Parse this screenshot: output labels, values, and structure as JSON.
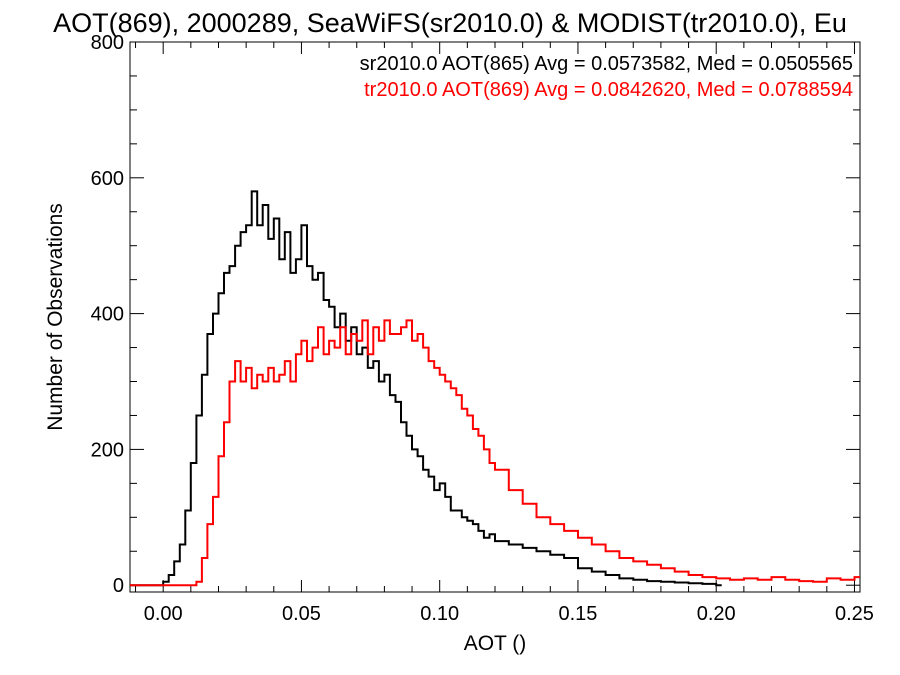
{
  "chart_data": {
    "type": "line",
    "title": "AOT(869), 2000289, SeaWiFS(sr2010.0) & MODIST(tr2010.0), Eu",
    "xlabel": "AOT ()",
    "ylabel": "Number of Observations",
    "xlim": [
      -0.012,
      0.252
    ],
    "ylim": [
      -10,
      800
    ],
    "xticks": [
      0.0,
      0.05,
      0.1,
      0.15,
      0.2,
      0.25
    ],
    "xtick_labels": [
      "0.00",
      "0.05",
      "0.10",
      "0.15",
      "0.20",
      "0.25"
    ],
    "yticks": [
      0,
      200,
      400,
      600,
      800
    ],
    "ytick_labels": [
      "0",
      "200",
      "400",
      "600",
      "800"
    ],
    "grid": false,
    "legend_position": "top-right",
    "series": [
      {
        "name": "sr2010.0 AOT(865) Avg = 0.0573582, Med = 0.0505565",
        "color": "#000000",
        "step": "hist",
        "x": [
          0.0,
          0.002,
          0.004,
          0.006,
          0.008,
          0.01,
          0.012,
          0.014,
          0.016,
          0.018,
          0.02,
          0.022,
          0.024,
          0.026,
          0.028,
          0.03,
          0.032,
          0.034,
          0.036,
          0.038,
          0.04,
          0.042,
          0.044,
          0.046,
          0.048,
          0.05,
          0.052,
          0.054,
          0.056,
          0.058,
          0.06,
          0.062,
          0.064,
          0.066,
          0.068,
          0.07,
          0.072,
          0.074,
          0.076,
          0.078,
          0.08,
          0.082,
          0.084,
          0.086,
          0.088,
          0.09,
          0.092,
          0.094,
          0.096,
          0.098,
          0.1,
          0.102,
          0.104,
          0.106,
          0.108,
          0.11,
          0.112,
          0.114,
          0.116,
          0.118,
          0.12,
          0.125,
          0.13,
          0.135,
          0.14,
          0.145,
          0.15,
          0.155,
          0.16,
          0.165,
          0.17,
          0.175,
          0.18,
          0.185,
          0.19,
          0.195,
          0.2
        ],
        "values": [
          5,
          15,
          35,
          60,
          110,
          180,
          250,
          310,
          370,
          400,
          430,
          460,
          470,
          500,
          520,
          530,
          580,
          530,
          560,
          510,
          540,
          480,
          520,
          460,
          480,
          530,
          470,
          450,
          460,
          420,
          410,
          380,
          400,
          360,
          380,
          340,
          350,
          320,
          330,
          300,
          310,
          280,
          270,
          240,
          220,
          200,
          190,
          170,
          160,
          140,
          150,
          130,
          110,
          110,
          100,
          95,
          90,
          80,
          70,
          75,
          65,
          60,
          55,
          50,
          45,
          40,
          25,
          20,
          15,
          10,
          8,
          6,
          5,
          4,
          3,
          2,
          0
        ]
      },
      {
        "name": "tr2010.0 AOT(869) Avg = 0.0842620, Med = 0.0788594",
        "color": "#ff0000",
        "step": "hist",
        "x": [
          0.012,
          0.014,
          0.016,
          0.018,
          0.02,
          0.022,
          0.024,
          0.026,
          0.028,
          0.03,
          0.032,
          0.034,
          0.036,
          0.038,
          0.04,
          0.042,
          0.044,
          0.046,
          0.048,
          0.05,
          0.052,
          0.054,
          0.056,
          0.058,
          0.06,
          0.062,
          0.064,
          0.066,
          0.068,
          0.07,
          0.072,
          0.074,
          0.076,
          0.078,
          0.08,
          0.082,
          0.084,
          0.086,
          0.088,
          0.09,
          0.092,
          0.094,
          0.096,
          0.098,
          0.1,
          0.102,
          0.104,
          0.106,
          0.108,
          0.11,
          0.112,
          0.114,
          0.116,
          0.118,
          0.12,
          0.125,
          0.13,
          0.135,
          0.14,
          0.145,
          0.15,
          0.155,
          0.16,
          0.165,
          0.17,
          0.175,
          0.18,
          0.185,
          0.19,
          0.195,
          0.2,
          0.205,
          0.21,
          0.215,
          0.22,
          0.225,
          0.23,
          0.235,
          0.24,
          0.245,
          0.25
        ],
        "values": [
          5,
          40,
          90,
          130,
          190,
          240,
          300,
          330,
          300,
          320,
          290,
          310,
          300,
          320,
          300,
          310,
          330,
          300,
          340,
          360,
          330,
          350,
          380,
          340,
          360,
          350,
          380,
          340,
          370,
          360,
          390,
          340,
          380,
          360,
          390,
          370,
          370,
          380,
          390,
          360,
          370,
          350,
          330,
          320,
          310,
          300,
          290,
          280,
          260,
          250,
          230,
          220,
          200,
          180,
          170,
          140,
          120,
          100,
          90,
          80,
          70,
          60,
          50,
          40,
          35,
          30,
          25,
          20,
          15,
          12,
          10,
          8,
          10,
          8,
          12,
          8,
          6,
          5,
          10,
          8,
          12
        ]
      }
    ]
  }
}
